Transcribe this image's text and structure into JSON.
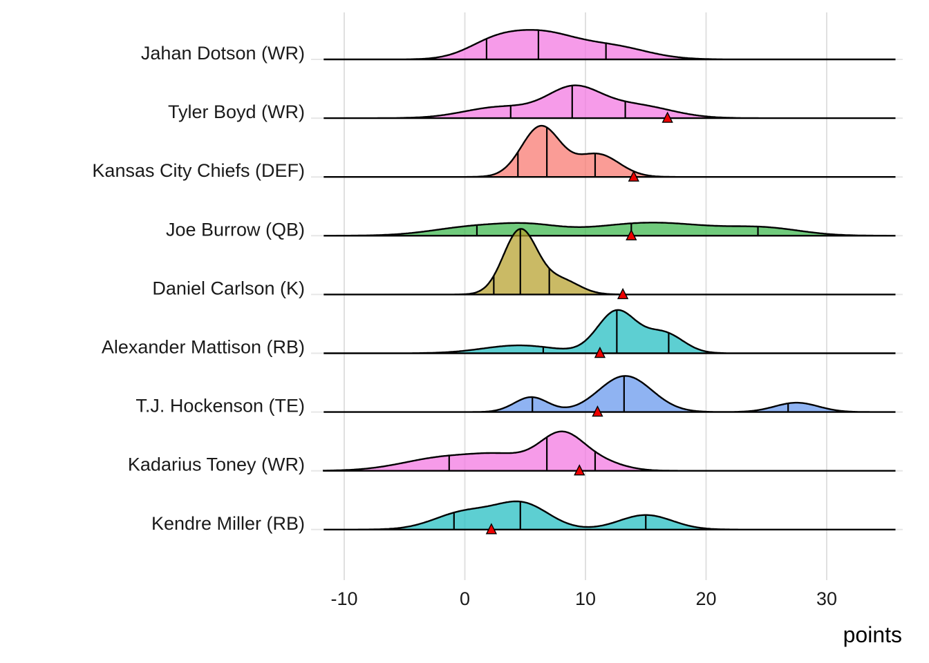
{
  "chart_data": {
    "type": "ridgeline",
    "title": "",
    "xlabel": "points",
    "ylabel": "",
    "xlim": [
      -12,
      36
    ],
    "x_ticks": [
      -10,
      0,
      10,
      20,
      30
    ],
    "x_tick_labels": [
      "-10",
      "0",
      "10",
      "20",
      "30"
    ],
    "grid": "vertical",
    "legend": "none",
    "marker_shape": "triangle",
    "marker_color": "#ee0000",
    "series": [
      {
        "name": "Jahan Dotson (WR)",
        "color": "#f374e0",
        "components": [
          [
            2.5,
            2.3,
            0.45
          ],
          [
            6.5,
            2.6,
            0.6
          ],
          [
            12.0,
            3.0,
            0.35
          ]
        ],
        "peak_scale": 0.45,
        "quantiles": [
          1.8,
          6.1,
          11.7
        ],
        "actual": null
      },
      {
        "name": "Tyler Boyd (WR)",
        "color": "#f374e0",
        "components": [
          [
            3.0,
            3.0,
            0.3
          ],
          [
            9.0,
            2.2,
            0.75
          ],
          [
            14.0,
            3.0,
            0.35
          ]
        ],
        "peak_scale": 0.5,
        "quantiles": [
          3.8,
          8.9,
          13.3
        ],
        "actual": 16.8
      },
      {
        "name": "Kansas City Chiefs (DEF)",
        "color": "#f8766d",
        "components": [
          [
            6.3,
            1.6,
            1.0
          ],
          [
            11.0,
            1.8,
            0.45
          ]
        ],
        "peak_scale": 0.78,
        "quantiles": [
          4.4,
          6.8,
          10.8
        ],
        "actual": 14.0
      },
      {
        "name": "Joe Burrow (QB)",
        "color": "#39b54a",
        "components": [
          [
            1.0,
            3.5,
            0.35
          ],
          [
            5.5,
            2.5,
            0.25
          ],
          [
            15.5,
            5.0,
            0.5
          ],
          [
            25.0,
            3.0,
            0.25
          ]
        ],
        "peak_scale": 0.2,
        "quantiles": [
          1.0,
          13.8,
          24.3
        ],
        "actual": 13.8
      },
      {
        "name": "Daniel Carlson (K)",
        "color": "#b59f2a",
        "components": [
          [
            4.6,
            1.4,
            1.0
          ],
          [
            8.0,
            1.5,
            0.22
          ]
        ],
        "peak_scale": 1.0,
        "quantiles": [
          2.4,
          4.6,
          7.0
        ],
        "actual": 13.1
      },
      {
        "name": "Alexander Mattison (RB)",
        "color": "#1fbcc0",
        "components": [
          [
            4.5,
            3.0,
            0.15
          ],
          [
            12.6,
            1.6,
            0.8
          ],
          [
            16.5,
            1.6,
            0.38
          ]
        ],
        "peak_scale": 0.66,
        "quantiles": [
          6.5,
          12.6,
          16.9
        ],
        "actual": 11.2
      },
      {
        "name": "T.J. Hockenson (TE)",
        "color": "#6495ed",
        "components": [
          [
            5.5,
            1.4,
            0.35
          ],
          [
            13.3,
            2.2,
            0.85
          ],
          [
            27.5,
            1.8,
            0.22
          ]
        ],
        "peak_scale": 0.55,
        "quantiles": [
          5.6,
          13.2,
          26.8
        ],
        "actual": 11.0
      },
      {
        "name": "Kadarius Toney (WR)",
        "color": "#f374e0",
        "components": [
          [
            -1.5,
            3.5,
            0.3
          ],
          [
            3.5,
            2.5,
            0.25
          ],
          [
            8.0,
            1.8,
            0.75
          ],
          [
            11.0,
            2.0,
            0.2
          ]
        ],
        "peak_scale": 0.6,
        "quantiles": [
          -1.3,
          6.8,
          10.8
        ],
        "actual": 9.5
      },
      {
        "name": "Kendre Miller (RB)",
        "color": "#1fbcc0",
        "components": [
          [
            0.0,
            2.5,
            0.45
          ],
          [
            4.8,
            2.2,
            0.65
          ],
          [
            15.0,
            2.2,
            0.38
          ]
        ],
        "peak_scale": 0.43,
        "quantiles": [
          -0.9,
          4.6,
          15.0
        ],
        "actual": 2.2
      }
    ]
  }
}
